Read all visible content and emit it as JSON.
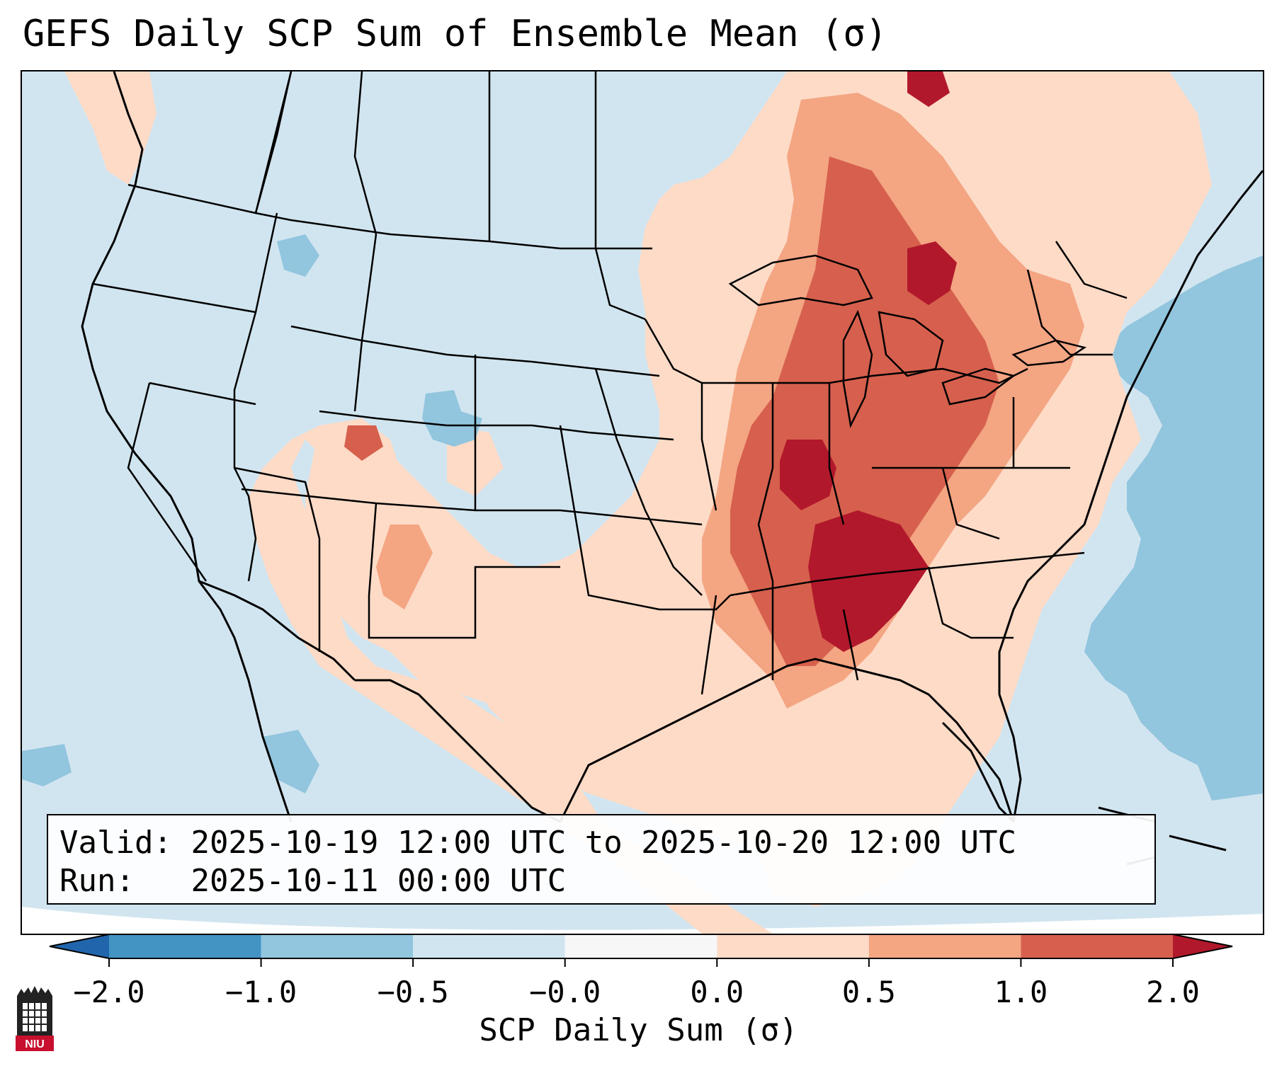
{
  "title": "GEFS Daily SCP Sum of Ensemble Mean (σ)",
  "info": {
    "valid_label": "Valid:",
    "valid_value": "2025-10-19 12:00 UTC to 2025-10-20 12:00 UTC",
    "run_label": "Run:",
    "run_value": "2025-10-11 00:00 UTC"
  },
  "colorbar": {
    "label": "SCP Daily Sum (σ)",
    "ticks": [
      "−2.0",
      "−1.0",
      "−0.5",
      "−0.0",
      "0.0",
      "0.5",
      "1.0",
      "2.0"
    ],
    "colors": [
      "#4393c3",
      "#92c5de",
      "#d1e5f0",
      "#f7f7f7",
      "#fddbc7",
      "#f4a582",
      "#d6604d",
      "#b2182b"
    ],
    "extend": "both"
  },
  "logo": {
    "text": "NIU",
    "color": "#c8102e"
  }
}
